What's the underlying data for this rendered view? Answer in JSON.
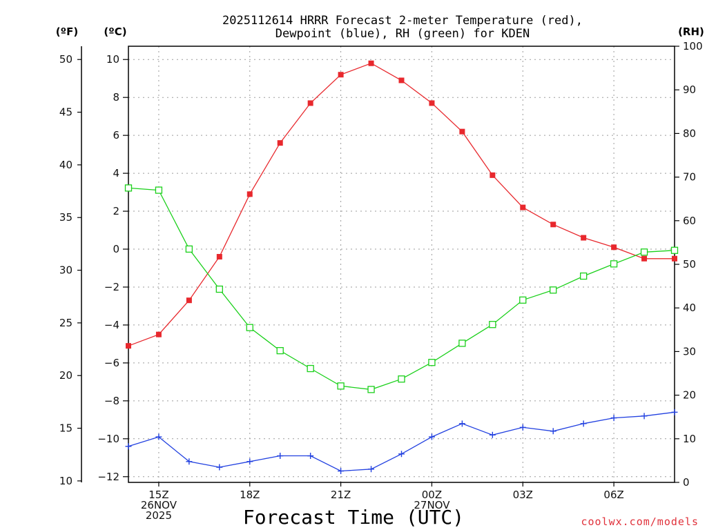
{
  "chart_data": {
    "type": "line",
    "title": [
      "2025112614 HRRR Forecast 2-meter Temperature (red),",
      "Dewpoint (blue), RH (green) for KDEN"
    ],
    "xlabel": "Forecast Time (UTC)",
    "credit": "coolwx.com/models",
    "units": {
      "fahrenheit": "(ºF)",
      "celsius": "(ºC)",
      "rh": "(RH)"
    },
    "x": [
      14,
      15,
      16,
      17,
      18,
      19,
      20,
      21,
      22,
      23,
      24,
      25,
      26,
      27,
      28,
      29,
      30,
      31,
      32
    ],
    "xlim": [
      14,
      32
    ],
    "x_ticks": [
      {
        "x": 15,
        "lines": [
          "15Z",
          "26NOV",
          "2025"
        ]
      },
      {
        "x": 18,
        "lines": [
          "18Z"
        ]
      },
      {
        "x": 21,
        "lines": [
          "21Z"
        ]
      },
      {
        "x": 24,
        "lines": [
          "00Z",
          "27NOV"
        ]
      },
      {
        "x": 27,
        "lines": [
          "03Z"
        ]
      },
      {
        "x": 30,
        "lines": [
          "06Z"
        ]
      }
    ],
    "celsius_axis": {
      "ylim": [
        -12.3,
        10.7
      ],
      "ticks": [
        "10",
        "8",
        "6",
        "4",
        "2",
        "0",
        "−2",
        "−4",
        "−6",
        "−8",
        "−10",
        "−12"
      ]
    },
    "fahrenheit_axis": {
      "ylim": [
        9.86,
        51.26
      ],
      "ticks": [
        "50",
        "45",
        "40",
        "35",
        "30",
        "25",
        "20",
        "15",
        "10"
      ]
    },
    "rh_axis": {
      "ylim": [
        0,
        100
      ],
      "ticks": [
        "100",
        "90",
        "80",
        "70",
        "60",
        "50",
        "40",
        "30",
        "20",
        "10",
        "0"
      ]
    },
    "series": [
      {
        "name": "2-meter Temperature",
        "axis": "celsius",
        "color": "#e8282d",
        "marker": "filled-square",
        "values": [
          -5.1,
          -4.5,
          -2.7,
          -0.4,
          2.9,
          5.6,
          7.7,
          9.2,
          9.8,
          8.9,
          7.7,
          6.2,
          3.9,
          2.2,
          1.3,
          0.6,
          0.1,
          -0.5,
          -0.5
        ]
      },
      {
        "name": "Dewpoint",
        "axis": "celsius",
        "color": "#2140e0",
        "marker": "plus",
        "values": [
          -10.4,
          -9.9,
          -11.2,
          -11.5,
          -11.2,
          -10.9,
          -10.9,
          -11.7,
          -11.6,
          -10.8,
          -9.9,
          -9.2,
          -9.8,
          -9.4,
          -9.6,
          -9.2,
          -8.9,
          -8.8,
          -8.6
        ]
      },
      {
        "name": "RH",
        "axis": "rh",
        "color": "#1ad01a",
        "marker": "open-square",
        "values": [
          67.5,
          67,
          53.5,
          44.3,
          35.5,
          30.2,
          26.1,
          22.1,
          21.3,
          23.7,
          27.5,
          31.9,
          36.2,
          41.8,
          44.1,
          47.3,
          50.1,
          52.8,
          53.2
        ]
      }
    ]
  }
}
